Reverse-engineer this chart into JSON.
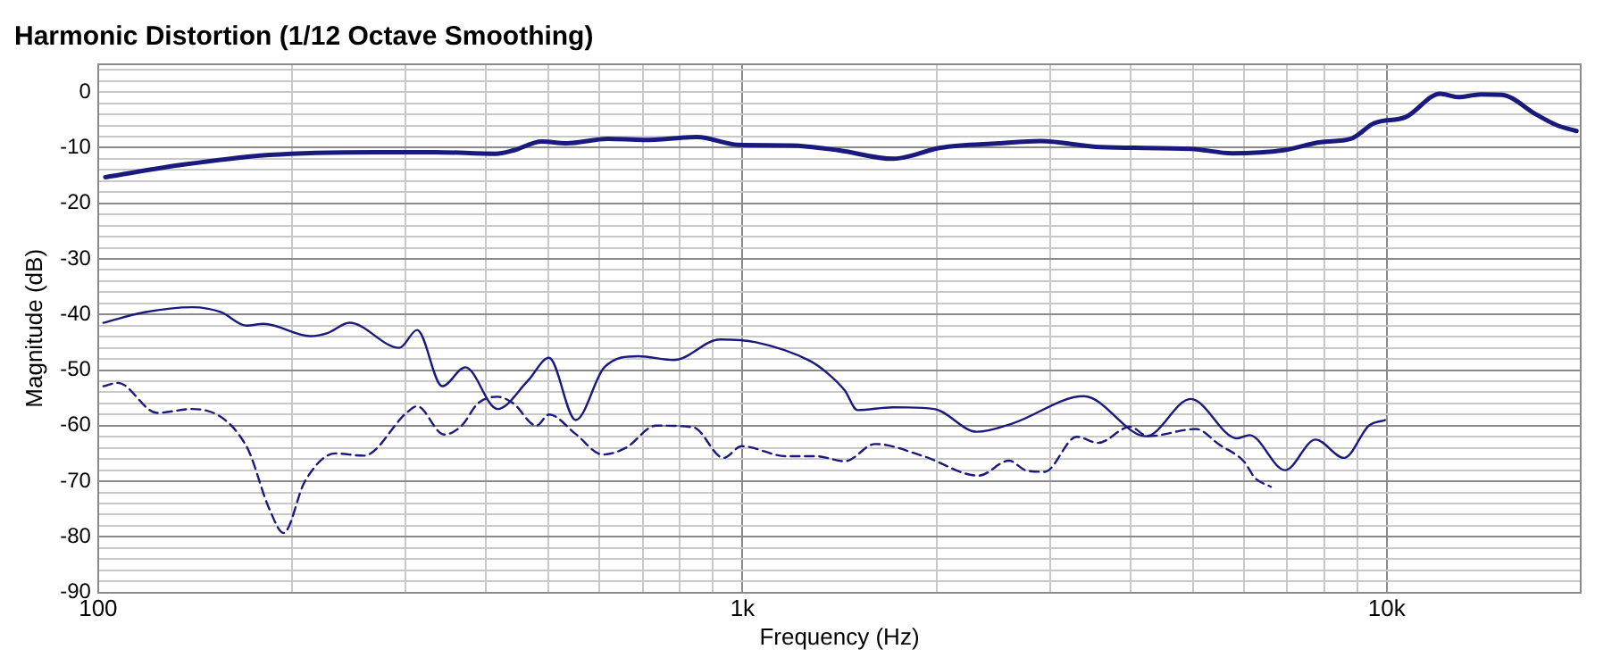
{
  "chart_data": {
    "type": "line",
    "title": "Harmonic Distortion (1/12 Octave Smoothing)",
    "xlabel": "Frequency (Hz)",
    "ylabel": "Magnitude (dB)",
    "log": "x",
    "grid": true,
    "legend": false,
    "marker": "none",
    "xlim": [
      100,
      20000
    ],
    "ylim": [
      -90,
      5
    ],
    "xticks": [
      100,
      {
        "value": 200,
        "label": null
      },
      {
        "value": 300,
        "label": null
      },
      {
        "value": 400,
        "label": null
      },
      {
        "value": 500,
        "label": null
      },
      {
        "value": 600,
        "label": null
      },
      {
        "value": 700,
        "label": null
      },
      {
        "value": 800,
        "label": null
      },
      {
        "value": 900,
        "label": null
      },
      {
        "value": 1000,
        "label": "1k"
      },
      {
        "value": 2000,
        "label": null
      },
      {
        "value": 3000,
        "label": null
      },
      {
        "value": 4000,
        "label": null
      },
      {
        "value": 5000,
        "label": null
      },
      {
        "value": 6000,
        "label": null
      },
      {
        "value": 7000,
        "label": null
      },
      {
        "value": 8000,
        "label": null
      },
      {
        "value": 9000,
        "label": null
      },
      {
        "value": 10000,
        "label": "10k"
      }
    ],
    "yticks": [
      -90,
      {
        "value": -88,
        "label": null
      },
      {
        "value": -86,
        "label": null
      },
      {
        "value": -84,
        "label": null
      },
      {
        "value": -82,
        "label": null
      },
      -80,
      {
        "value": -78,
        "label": null
      },
      {
        "value": -76,
        "label": null
      },
      {
        "value": -74,
        "label": null
      },
      {
        "value": -72,
        "label": null
      },
      -70,
      {
        "value": -68,
        "label": null
      },
      {
        "value": -66,
        "label": null
      },
      {
        "value": -64,
        "label": null
      },
      {
        "value": -62,
        "label": null
      },
      -60,
      {
        "value": -58,
        "label": null
      },
      {
        "value": -56,
        "label": null
      },
      {
        "value": -54,
        "label": null
      },
      {
        "value": -52,
        "label": null
      },
      -50,
      {
        "value": -48,
        "label": null
      },
      {
        "value": -46,
        "label": null
      },
      {
        "value": -44,
        "label": null
      },
      {
        "value": -42,
        "label": null
      },
      -40,
      {
        "value": -38,
        "label": null
      },
      {
        "value": -36,
        "label": null
      },
      {
        "value": -34,
        "label": null
      },
      {
        "value": -32,
        "label": null
      },
      -30,
      {
        "value": -28,
        "label": null
      },
      {
        "value": -26,
        "label": null
      },
      {
        "value": -24,
        "label": null
      },
      {
        "value": -22,
        "label": null
      },
      -20,
      {
        "value": -18,
        "label": null
      },
      {
        "value": -16,
        "label": null
      },
      {
        "value": -14,
        "label": null
      },
      {
        "value": -12,
        "label": null
      },
      -10,
      {
        "value": -8,
        "label": null
      },
      {
        "value": -6,
        "label": null
      },
      {
        "value": -4,
        "label": null
      },
      {
        "value": -2,
        "label": null
      },
      0,
      {
        "value": 2,
        "label": null
      },
      {
        "value": 4,
        "label": null
      }
    ],
    "series": [
      {
        "color": "#1a1a7e",
        "line_style": "solid",
        "x": [
          102.6,
          136.6,
          184.4,
          270,
          333,
          414,
          441,
          488,
          533,
          618,
          703,
          850,
          985,
          1190,
          1415,
          1713,
          2030,
          2500,
          2900,
          3600,
          4963,
          5750,
          6954,
          7900,
          8800,
          9560,
          10700,
          12100,
          12900,
          14000,
          15100,
          17100,
          18400,
          19700
        ],
        "values": [
          -15.3,
          -13,
          -11.3,
          -10.8,
          -10.8,
          -11.1,
          -10.5,
          -8.9,
          -9.2,
          -8.4,
          -8.6,
          -8.1,
          -9.5,
          -9.6,
          -10.5,
          -12,
          -10,
          -9.2,
          -8.8,
          -9.9,
          -10.2,
          -11,
          -10.4,
          -9,
          -8.4,
          -5.6,
          -4.5,
          -0.3,
          -0.9,
          -0.4,
          -0.5,
          -4.1,
          -6,
          -7
        ]
      },
      {
        "color": "#1a1a7e",
        "line_style": "solid",
        "x": [
          101.9,
          118,
          140.1,
          155.2,
          169.7,
          180.8,
          213.4,
          227.5,
          245.5,
          293.5,
          312.7,
          342,
          371.5,
          416.6,
          464,
          501,
          551,
          610.5,
          689,
          783,
          923,
          1049,
          1270,
          1353,
          1442,
          1508,
          1713,
          1983,
          2311,
          2625,
          3386,
          4232,
          4963,
          5857,
          6124,
          6954,
          7753,
          8584,
          9383,
          9936
        ],
        "values": [
          -41.5,
          -39.6,
          -38.7,
          -39.6,
          -42,
          -41.7,
          -43.9,
          -43.3,
          -41.5,
          -46,
          -42.8,
          -52.9,
          -49.5,
          -57,
          -52,
          -47.8,
          -59,
          -49.5,
          -47.5,
          -48.2,
          -44.5,
          -45,
          -48.3,
          -50.5,
          -53.7,
          -57.2,
          -56.7,
          -57,
          -61.1,
          -59.6,
          -54.7,
          -61.9,
          -55.2,
          -62.3,
          -61.7,
          -68,
          -62.5,
          -65.8,
          -60,
          -59
        ]
      },
      {
        "color": "#1a1a7e",
        "line_style": "dashed",
        "x": [
          101.9,
          107.3,
          123.4,
          140.1,
          169.7,
          184.4,
          194,
          209.4,
          233.3,
          258.4,
          301,
          312.7,
          344.1,
          366.7,
          388.4,
          416.6,
          441,
          479,
          501,
          551,
          606.6,
          659,
          734,
          839,
          935,
          997,
          1169,
          1302,
          1442,
          1607,
          1910,
          2326,
          2592,
          2762,
          2944,
          3302,
          3564,
          3997,
          4259,
          5058,
          5495,
          6009,
          6243,
          6609
        ],
        "values": [
          -52.9,
          -52.3,
          -57.7,
          -57,
          -63.6,
          -75,
          -79.3,
          -70,
          -65,
          -65.4,
          -57.7,
          -56.5,
          -61.6,
          -60,
          -56,
          -54.8,
          -56,
          -60,
          -58,
          -61.5,
          -65.2,
          -64,
          -60,
          -60.3,
          -65.8,
          -63.7,
          -65.5,
          -65.5,
          -66.4,
          -63.3,
          -65.5,
          -69,
          -66.3,
          -68.1,
          -68.3,
          -62,
          -63.1,
          -60.2,
          -61.9,
          -60.6,
          -63.4,
          -66.5,
          -69.4,
          -71
        ]
      }
    ]
  }
}
